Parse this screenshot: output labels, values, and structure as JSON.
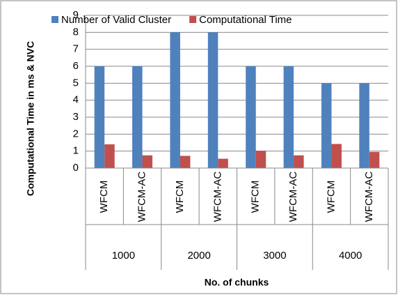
{
  "chart_data": {
    "type": "bar",
    "y_label": "Computational Time in ms & NVC",
    "x_label": "No. of chunks",
    "groups": [
      {
        "name": "1000",
        "categories": [
          "WFCM",
          "WFCM-AC"
        ]
      },
      {
        "name": "2000",
        "categories": [
          "WFCM",
          "WFCM-AC"
        ]
      },
      {
        "name": "3000",
        "categories": [
          "WFCM",
          "WFCM-AC"
        ]
      },
      {
        "name": "4000",
        "categories": [
          "WFCM",
          "WFCM-AC"
        ]
      }
    ],
    "series": [
      {
        "name": "Number of Valid Cluster",
        "color": "#4f81bd",
        "values": [
          6,
          6,
          8,
          8,
          6,
          6,
          5,
          5
        ]
      },
      {
        "name": "Computational Time",
        "color": "#c0504d",
        "values": [
          1.4,
          0.75,
          0.72,
          0.55,
          1.02,
          0.75,
          1.42,
          0.95
        ]
      }
    ],
    "ylim": [
      0,
      9
    ],
    "yticks": [
      0,
      1,
      2,
      3,
      4,
      5,
      6,
      7,
      8,
      9
    ],
    "grid": true,
    "legend": "top"
  }
}
